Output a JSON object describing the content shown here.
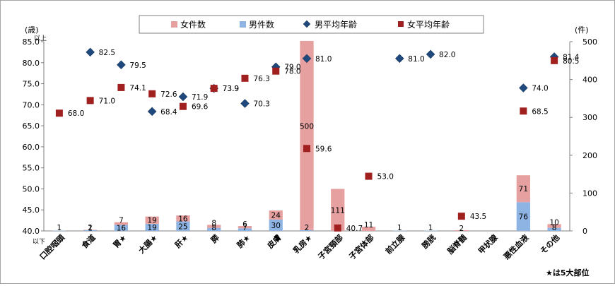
{
  "chart_data": {
    "type": "bar",
    "legend": {
      "items": [
        "女件数",
        "男件数",
        "男平均年齢",
        "女平均年齢"
      ],
      "placement": "top-center"
    },
    "categories": [
      "口腔咽頭",
      "食道",
      "胃★",
      "大腸★",
      "肝★",
      "膵",
      "肺★",
      "皮膚",
      "乳房★",
      "子宮頸部",
      "子宮体部",
      "前立腺",
      "膀胱",
      "脳脊髄",
      "甲状腺",
      "悪性血液",
      "その他"
    ],
    "series": [
      {
        "name": "男件数",
        "kind": "bar",
        "axis": "right",
        "color": "#8eb4e3",
        "values": [
          1,
          2,
          16,
          19,
          25,
          8,
          7,
          30,
          2,
          0,
          0,
          1,
          1,
          0,
          0,
          76,
          8
        ],
        "labels": [
          "1",
          "2",
          "16",
          "19",
          "25",
          "8",
          "7",
          "30",
          "2",
          "",
          "",
          "1",
          "1",
          "",
          "",
          "76",
          "8"
        ]
      },
      {
        "name": "女件数",
        "kind": "bar",
        "axis": "right",
        "color": "#e6a0a0",
        "values": [
          0,
          1,
          7,
          19,
          16,
          8,
          6,
          24,
          500,
          111,
          11,
          0,
          0,
          2,
          0,
          71,
          10
        ],
        "labels": [
          "",
          "1",
          "7",
          "19",
          "16",
          "8",
          "6",
          "24",
          "500",
          "111",
          "11",
          "",
          "",
          "2",
          "",
          "71",
          "10"
        ]
      },
      {
        "name": "男平均年齢",
        "kind": "marker",
        "marker": "diamond",
        "axis": "left",
        "color": "#1f497d",
        "values": [
          null,
          82.5,
          79.5,
          68.4,
          71.9,
          73.9,
          70.3,
          79.0,
          81.0,
          null,
          null,
          81.0,
          82.0,
          null,
          null,
          74.0,
          81.4
        ],
        "labels": [
          "",
          "82.5",
          "79.5",
          "68.4",
          "71.9",
          "73.9",
          "70.3",
          "79.0",
          "81.0",
          "",
          "",
          "81.0",
          "82.0",
          "",
          "",
          "74.0",
          "81.4"
        ]
      },
      {
        "name": "女平均年齢",
        "kind": "marker",
        "marker": "square",
        "axis": "left",
        "color": "#a02020",
        "values": [
          68.0,
          71.0,
          74.1,
          72.6,
          69.6,
          73.9,
          76.3,
          78.0,
          59.6,
          40.7,
          53.0,
          null,
          null,
          43.5,
          null,
          68.5,
          80.5
        ],
        "labels": [
          "68.0",
          "71.0",
          "74.1",
          "72.6",
          "69.6",
          "73.9",
          "76.3",
          "78.0",
          "59.6",
          "40.7",
          "53.0",
          "",
          "",
          "43.5",
          "",
          "68.5",
          "80.5"
        ]
      }
    ],
    "left_axis": {
      "unit": "(歳)",
      "min": 40,
      "max": 85,
      "step": 5,
      "ticks": [
        "40.0",
        "45.0",
        "50.0",
        "55.0",
        "60.0",
        "65.0",
        "70.0",
        "75.0",
        "80.0",
        "85.0"
      ],
      "top_note": "以上",
      "bottom_note": "以下"
    },
    "right_axis": {
      "unit": "(件)",
      "min": 0,
      "max": 500,
      "step": 100,
      "ticks": [
        "0",
        "100",
        "200",
        "300",
        "400",
        "500"
      ]
    },
    "grid": false,
    "footnote": "★は5大部位"
  }
}
